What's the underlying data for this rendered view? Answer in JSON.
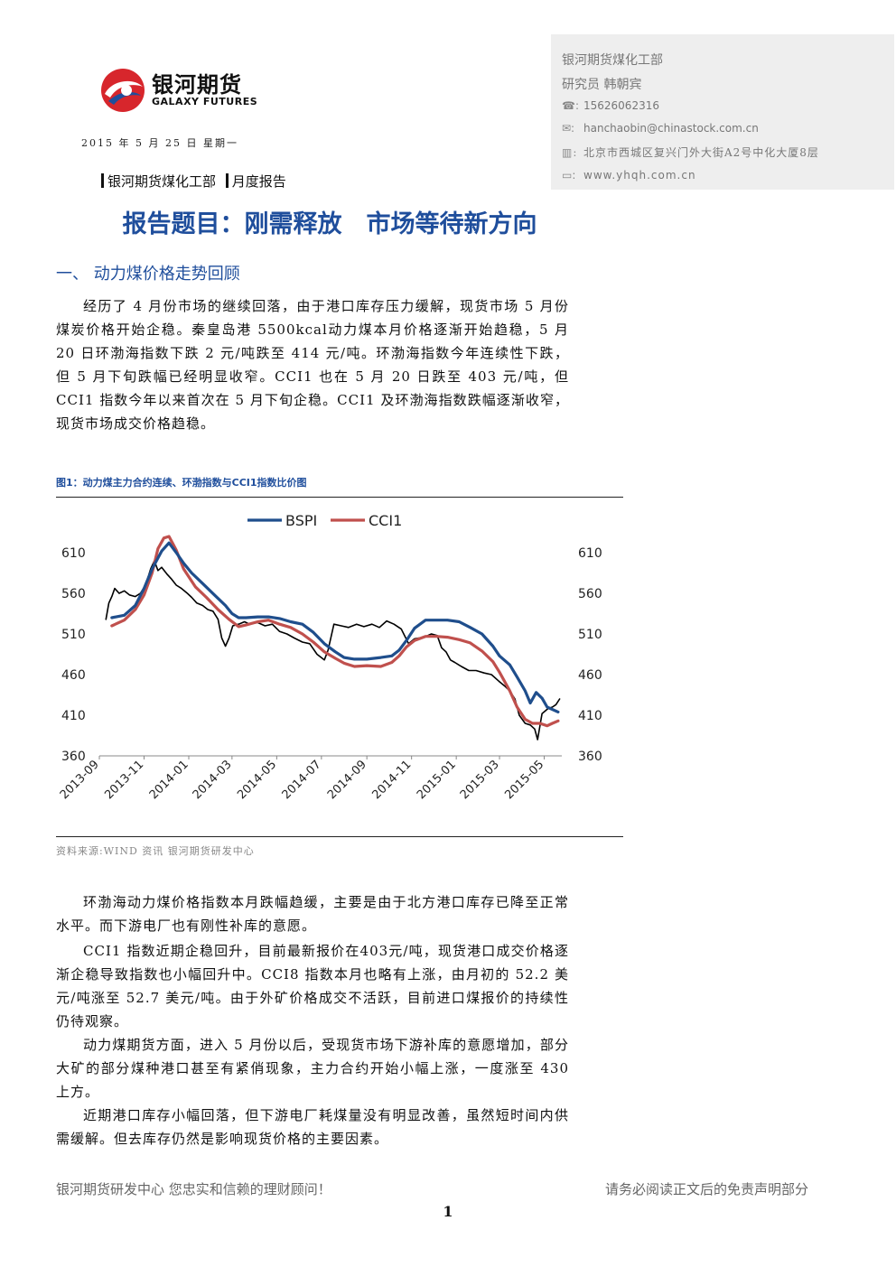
{
  "header": {
    "logo_cn": "银河期货",
    "logo_en": "GALAXY FUTURES",
    "date_line": "2015 年 5 月 25 日    星期一",
    "tag_dept": "银河期货煤化工部",
    "tag_type": "月度报告"
  },
  "contact": {
    "dept": "银河期货煤化工部",
    "analyst": "研究员 韩朝宾",
    "phone_icon": "phone-icon",
    "phone": "15626062316",
    "email_icon": "email-icon",
    "email": "hanchaobin@chinastock.com.cn",
    "address_icon": "building-icon",
    "address": "北京市西城区复兴门外大街A2号中化大厦8层",
    "web_icon": "monitor-icon",
    "website": "www.yhqh.com.cn"
  },
  "report_title": "报告题目：刚需释放　市场等待新方向",
  "section1": {
    "heading": "一、 动力煤价格走势回顾",
    "para1": "经历了 4 月份市场的继续回落，由于港口库存压力缓解，现货市场 5 月份煤炭价格开始企稳。秦皇岛港 5500kcal动力煤本月价格逐渐开始趋稳，5 月 20 日环渤海指数下跌 2 元/吨跌至 414 元/吨。环渤海指数今年连续性下跌，但 5 月下旬跌幅已经明显收窄。CCI1 也在 5 月 20 日跌至 403 元/吨，但 CCI1 指数今年以来首次在 5 月下旬企稳。CCI1 及环渤海指数跌幅逐渐收窄，现货市场成交价格趋稳。"
  },
  "figure": {
    "caption": "图1：动力煤主力合约连续、环渤指数与CCI1指数比价图",
    "source": "资料来源:WIND 资讯    银河期货研发中心"
  },
  "chart_data": {
    "type": "line",
    "legend_position": "top",
    "grid": false,
    "x_ticks": [
      "2013-09",
      "2013-11",
      "2014-01",
      "2014-03",
      "2014-05",
      "2014-07",
      "2014-09",
      "2014-11",
      "2015-01",
      "2015-03",
      "2015-05"
    ],
    "xlim": [
      "2013-09-01",
      "2015-05-25"
    ],
    "ylim": [
      360,
      630
    ],
    "y_ticks": [
      360,
      410,
      460,
      510,
      560,
      610
    ],
    "series": [
      {
        "name": "BSPI",
        "color": "#1f4e8c",
        "points": [
          [
            "2013-09-18",
            530
          ],
          [
            "2013-10-05",
            533
          ],
          [
            "2013-10-20",
            545
          ],
          [
            "2013-11-01",
            566
          ],
          [
            "2013-11-12",
            590
          ],
          [
            "2013-11-25",
            612
          ],
          [
            "2013-12-05",
            622
          ],
          [
            "2013-12-15",
            610
          ],
          [
            "2013-12-25",
            597
          ],
          [
            "2014-01-05",
            585
          ],
          [
            "2014-01-20",
            572
          ],
          [
            "2014-02-05",
            558
          ],
          [
            "2014-02-20",
            545
          ],
          [
            "2014-03-01",
            535
          ],
          [
            "2014-03-10",
            530
          ],
          [
            "2014-03-20",
            530
          ],
          [
            "2014-04-05",
            531
          ],
          [
            "2014-04-20",
            531
          ],
          [
            "2014-05-05",
            529
          ],
          [
            "2014-05-20",
            525
          ],
          [
            "2014-06-05",
            522
          ],
          [
            "2014-06-20",
            512
          ],
          [
            "2014-07-05",
            498
          ],
          [
            "2014-07-20",
            488
          ],
          [
            "2014-08-01",
            481
          ],
          [
            "2014-08-15",
            479
          ],
          [
            "2014-09-01",
            479
          ],
          [
            "2014-09-20",
            481
          ],
          [
            "2014-10-05",
            483
          ],
          [
            "2014-10-15",
            490
          ],
          [
            "2014-10-25",
            502
          ],
          [
            "2014-11-05",
            517
          ],
          [
            "2014-11-20",
            527
          ],
          [
            "2014-12-05",
            527
          ],
          [
            "2014-12-20",
            527
          ],
          [
            "2015-01-05",
            525
          ],
          [
            "2015-01-20",
            518
          ],
          [
            "2015-02-05",
            510
          ],
          [
            "2015-02-20",
            495
          ],
          [
            "2015-03-01",
            483
          ],
          [
            "2015-03-15",
            472
          ],
          [
            "2015-03-25",
            457
          ],
          [
            "2015-04-05",
            440
          ],
          [
            "2015-04-12",
            425
          ],
          [
            "2015-04-20",
            438
          ],
          [
            "2015-04-28",
            431
          ],
          [
            "2015-05-05",
            420
          ],
          [
            "2015-05-20",
            414
          ]
        ]
      },
      {
        "name": "CCI1",
        "color": "#c0504d",
        "points": [
          [
            "2013-09-18",
            520
          ],
          [
            "2013-10-05",
            527
          ],
          [
            "2013-10-20",
            540
          ],
          [
            "2013-11-01",
            558
          ],
          [
            "2013-11-12",
            585
          ],
          [
            "2013-11-20",
            615
          ],
          [
            "2013-11-28",
            628
          ],
          [
            "2013-12-05",
            630
          ],
          [
            "2013-12-15",
            613
          ],
          [
            "2013-12-25",
            590
          ],
          [
            "2014-01-10",
            568
          ],
          [
            "2014-01-25",
            555
          ],
          [
            "2014-02-10",
            540
          ],
          [
            "2014-02-25",
            528
          ],
          [
            "2014-03-10",
            519
          ],
          [
            "2014-03-20",
            521
          ],
          [
            "2014-04-05",
            525
          ],
          [
            "2014-04-20",
            527
          ],
          [
            "2014-05-05",
            522
          ],
          [
            "2014-05-20",
            518
          ],
          [
            "2014-06-05",
            510
          ],
          [
            "2014-06-20",
            500
          ],
          [
            "2014-07-05",
            488
          ],
          [
            "2014-07-20",
            480
          ],
          [
            "2014-08-01",
            474
          ],
          [
            "2014-08-15",
            470
          ],
          [
            "2014-09-01",
            471
          ],
          [
            "2014-09-20",
            470
          ],
          [
            "2014-10-05",
            475
          ],
          [
            "2014-10-15",
            483
          ],
          [
            "2014-10-25",
            494
          ],
          [
            "2014-11-05",
            502
          ],
          [
            "2014-11-20",
            507
          ],
          [
            "2014-12-05",
            507
          ],
          [
            "2014-12-20",
            506
          ],
          [
            "2015-01-05",
            503
          ],
          [
            "2015-01-20",
            499
          ],
          [
            "2015-02-05",
            489
          ],
          [
            "2015-02-20",
            476
          ],
          [
            "2015-03-01",
            463
          ],
          [
            "2015-03-15",
            440
          ],
          [
            "2015-03-25",
            420
          ],
          [
            "2015-04-05",
            405
          ],
          [
            "2015-04-15",
            400
          ],
          [
            "2015-04-25",
            400
          ],
          [
            "2015-05-05",
            397
          ],
          [
            "2015-05-12",
            400
          ],
          [
            "2015-05-20",
            403
          ]
        ]
      },
      {
        "name": "",
        "color": "#000000",
        "points": [
          [
            "2013-09-10",
            528
          ],
          [
            "2013-09-14",
            548
          ],
          [
            "2013-09-18",
            556
          ],
          [
            "2013-09-22",
            566
          ],
          [
            "2013-09-28",
            560
          ],
          [
            "2013-10-05",
            563
          ],
          [
            "2013-10-12",
            558
          ],
          [
            "2013-10-20",
            556
          ],
          [
            "2013-10-27",
            560
          ],
          [
            "2013-11-03",
            570
          ],
          [
            "2013-11-10",
            590
          ],
          [
            "2013-11-15",
            600
          ],
          [
            "2013-11-20",
            588
          ],
          [
            "2013-11-25",
            592
          ],
          [
            "2013-12-02",
            584
          ],
          [
            "2013-12-08",
            578
          ],
          [
            "2013-12-15",
            570
          ],
          [
            "2013-12-22",
            566
          ],
          [
            "2013-12-30",
            560
          ],
          [
            "2014-01-05",
            555
          ],
          [
            "2014-01-12",
            548
          ],
          [
            "2014-01-20",
            545
          ],
          [
            "2014-01-27",
            540
          ],
          [
            "2014-02-03",
            538
          ],
          [
            "2014-02-10",
            528
          ],
          [
            "2014-02-15",
            505
          ],
          [
            "2014-02-20",
            495
          ],
          [
            "2014-02-25",
            505
          ],
          [
            "2014-03-02",
            520
          ],
          [
            "2014-03-10",
            522
          ],
          [
            "2014-03-18",
            525
          ],
          [
            "2014-03-25",
            522
          ],
          [
            "2014-04-05",
            524
          ],
          [
            "2014-04-15",
            520
          ],
          [
            "2014-04-25",
            522
          ],
          [
            "2014-05-05",
            513
          ],
          [
            "2014-05-15",
            510
          ],
          [
            "2014-05-25",
            505
          ],
          [
            "2014-06-05",
            500
          ],
          [
            "2014-06-15",
            498
          ],
          [
            "2014-06-25",
            485
          ],
          [
            "2014-07-05",
            478
          ],
          [
            "2014-07-10",
            490
          ],
          [
            "2014-07-18",
            522
          ],
          [
            "2014-07-28",
            520
          ],
          [
            "2014-08-07",
            518
          ],
          [
            "2014-08-18",
            522
          ],
          [
            "2014-08-28",
            519
          ],
          [
            "2014-09-08",
            522
          ],
          [
            "2014-09-18",
            518
          ],
          [
            "2014-09-28",
            526
          ],
          [
            "2014-10-08",
            522
          ],
          [
            "2014-10-18",
            516
          ],
          [
            "2014-10-28",
            498
          ],
          [
            "2014-11-05",
            504
          ],
          [
            "2014-11-18",
            506
          ],
          [
            "2014-11-28",
            510
          ],
          [
            "2014-12-06",
            508
          ],
          [
            "2014-12-12",
            493
          ],
          [
            "2014-12-18",
            488
          ],
          [
            "2014-12-24",
            478
          ],
          [
            "2014-12-30",
            475
          ],
          [
            "2015-01-08",
            470
          ],
          [
            "2015-01-18",
            465
          ],
          [
            "2015-01-28",
            465
          ],
          [
            "2015-02-08",
            462
          ],
          [
            "2015-02-18",
            460
          ],
          [
            "2015-02-28",
            452
          ],
          [
            "2015-03-08",
            446
          ],
          [
            "2015-03-15",
            440
          ],
          [
            "2015-03-22",
            430
          ],
          [
            "2015-03-28",
            410
          ],
          [
            "2015-04-05",
            400
          ],
          [
            "2015-04-12",
            398
          ],
          [
            "2015-04-18",
            393
          ],
          [
            "2015-04-22",
            380
          ],
          [
            "2015-04-28",
            412
          ],
          [
            "2015-05-06",
            418
          ],
          [
            "2015-05-12",
            420
          ],
          [
            "2015-05-17",
            423
          ],
          [
            "2015-05-22",
            430
          ]
        ]
      }
    ]
  },
  "section1b": {
    "para2": "环渤海动力煤价格指数本月跌幅趋缓，主要是由于北方港口库存已降至正常水平。而下游电厂也有刚性补库的意愿。",
    "para3": "CCI1 指数近期企稳回升，目前最新报价在403元/吨，现货港口成交价格逐渐企稳导致指数也小幅回升中。CCI8 指数本月也略有上涨，由月初的 52.2 美元/吨涨至 52.7 美元/吨。由于外矿价格成交不活跃，目前进口煤报价的持续性仍待观察。",
    "para4": "动力煤期货方面，进入 5 月份以后，受现货市场下游补库的意愿增加，部分大矿的部分煤种港口甚至有紧俏现象，主力合约开始小幅上涨，一度涨至 430 上方。",
    "para5": "近期港口库存小幅回落，但下游电厂耗煤量没有明显改善，虽然短时间内供需缓解。但去库存仍然是影响现货价格的主要因素。"
  },
  "footer": {
    "left": "银河期货研发中心 您忠实和信赖的理财顾问！",
    "right": "请务必阅读正文后的免责声明部分",
    "page_number": "1"
  }
}
